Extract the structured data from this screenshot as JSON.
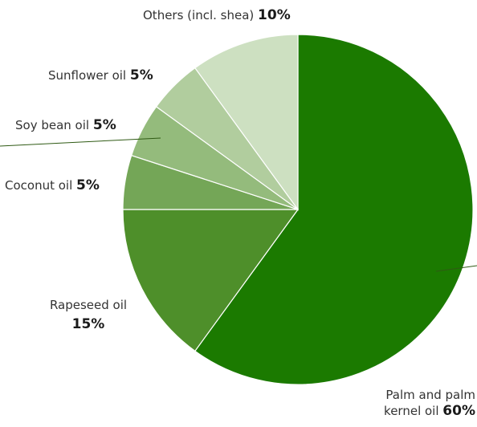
{
  "chart_data": {
    "type": "pie",
    "start_angle_deg": 0,
    "direction": "clockwise",
    "slices": [
      {
        "label": "Palm and palm kernel oil",
        "label_line1": "Palm and palm",
        "label_line2": "kernel oil",
        "value": 60,
        "pct_text": "60%",
        "color": "#1b7a00"
      },
      {
        "label": "Rapeseed oil",
        "value": 15,
        "pct_text": "15%",
        "color": "#4e8f2a"
      },
      {
        "label": "Coconut oil",
        "value": 5,
        "pct_text": "5%",
        "color": "#74a657"
      },
      {
        "label": "Soy bean oil",
        "value": 5,
        "pct_text": "5%",
        "color": "#94bb7c"
      },
      {
        "label": "Sunflower oil",
        "value": 5,
        "pct_text": "5%",
        "color": "#b1cd9e"
      },
      {
        "label": "Others (incl. shea)",
        "value": 10,
        "pct_text": "10%",
        "color": "#cde0c1"
      }
    ],
    "leader_color": "#2f5a14",
    "slice_border_color": "#ffffff"
  }
}
